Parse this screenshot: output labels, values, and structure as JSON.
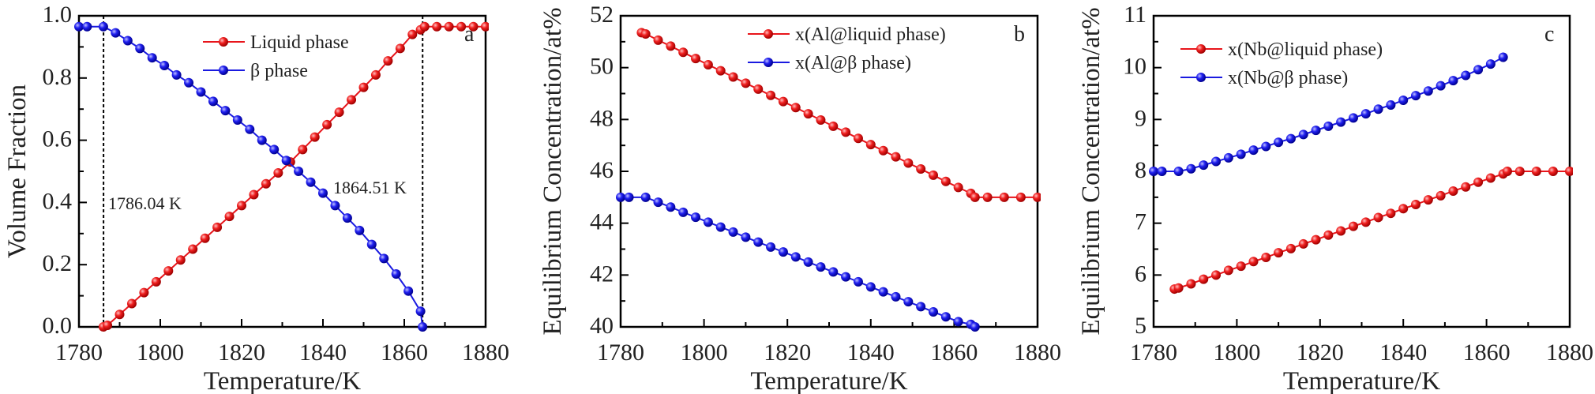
{
  "chart_data": [
    {
      "type": "line",
      "panel_label": "a",
      "xlabel": "Temperature/K",
      "ylabel": "Volume Fraction",
      "xlim": [
        1780,
        1880
      ],
      "ylim": [
        0,
        1.0
      ],
      "xticks": [
        1780,
        1800,
        1820,
        1840,
        1860,
        1880
      ],
      "xtick_labels": [
        "1780",
        "1800",
        "1820",
        "1840",
        "1860",
        "1880"
      ],
      "yticks": [
        0,
        0.2,
        0.4,
        0.6,
        0.8,
        1.0
      ],
      "ytick_labels": [
        "0.0",
        "0.2",
        "0.4",
        "0.6",
        "0.8",
        "1.0"
      ],
      "x_minor": 10,
      "y_minor": 0.1,
      "legend_position": "top-right",
      "series": [
        {
          "name": "Liquid phase",
          "color": "#e8151b",
          "x": [
            1786,
            1787,
            1790,
            1793,
            1796,
            1799,
            1802,
            1805,
            1808,
            1811,
            1814,
            1817,
            1820,
            1823,
            1826,
            1829,
            1832,
            1835,
            1838,
            1841,
            1844,
            1847,
            1850,
            1853,
            1856,
            1859,
            1862,
            1864,
            1865,
            1868,
            1871,
            1874,
            1877,
            1880
          ],
          "y": [
            0,
            0.005,
            0.04,
            0.075,
            0.11,
            0.145,
            0.18,
            0.215,
            0.25,
            0.285,
            0.32,
            0.355,
            0.39,
            0.425,
            0.46,
            0.495,
            0.53,
            0.57,
            0.61,
            0.65,
            0.69,
            0.73,
            0.77,
            0.81,
            0.855,
            0.895,
            0.94,
            0.955,
            0.965,
            0.965,
            0.965,
            0.965,
            0.965,
            0.965
          ]
        },
        {
          "name": "β phase",
          "color": "#1a1ae0",
          "x": [
            1780,
            1782,
            1786,
            1789,
            1792,
            1795,
            1798,
            1801,
            1804,
            1807,
            1810,
            1813,
            1816,
            1819,
            1822,
            1825,
            1828,
            1831,
            1834,
            1837,
            1840,
            1843,
            1846,
            1849,
            1852,
            1855,
            1858,
            1861,
            1864,
            1864.5
          ],
          "y": [
            0.965,
            0.965,
            0.965,
            0.945,
            0.92,
            0.895,
            0.865,
            0.84,
            0.81,
            0.785,
            0.755,
            0.725,
            0.695,
            0.665,
            0.635,
            0.6,
            0.57,
            0.535,
            0.5,
            0.465,
            0.43,
            0.39,
            0.35,
            0.31,
            0.265,
            0.22,
            0.17,
            0.115,
            0.05,
            0
          ]
        }
      ],
      "vlines": [
        {
          "x": 1786.04,
          "label": "1786.04 K"
        },
        {
          "x": 1864.51,
          "label": "1864.51 K"
        }
      ]
    },
    {
      "type": "line",
      "panel_label": "b",
      "xlabel": "Temperature/K",
      "ylabel": "Equilibrium Concentration/at%",
      "xlim": [
        1780,
        1880
      ],
      "ylim": [
        40,
        52
      ],
      "xticks": [
        1780,
        1800,
        1820,
        1840,
        1860,
        1880
      ],
      "xtick_labels": [
        "1780",
        "1800",
        "1820",
        "1840",
        "1860",
        "1880"
      ],
      "yticks": [
        40,
        42,
        44,
        46,
        48,
        50,
        52
      ],
      "ytick_labels": [
        "40",
        "42",
        "44",
        "46",
        "48",
        "50",
        "52"
      ],
      "x_minor": 10,
      "y_minor": 1,
      "legend_position": "top-center",
      "series": [
        {
          "name": "x(Al@liquid phase)",
          "color": "#e8151b",
          "x": [
            1785,
            1786,
            1789,
            1792,
            1795,
            1798,
            1801,
            1804,
            1807,
            1810,
            1813,
            1816,
            1819,
            1822,
            1825,
            1828,
            1831,
            1834,
            1837,
            1840,
            1843,
            1846,
            1849,
            1852,
            1855,
            1858,
            1861,
            1864,
            1865,
            1868,
            1872,
            1876,
            1880
          ],
          "y": [
            51.35,
            51.3,
            51.06,
            50.83,
            50.59,
            50.35,
            50.11,
            49.88,
            49.64,
            49.4,
            49.17,
            48.93,
            48.69,
            48.46,
            48.22,
            47.98,
            47.74,
            47.51,
            47.27,
            47.03,
            46.8,
            46.56,
            46.32,
            46.09,
            45.85,
            45.61,
            45.38,
            45.15,
            45.0,
            45.0,
            45.0,
            45.0,
            45.0
          ]
        },
        {
          "name": "x(Al@β phase)",
          "color": "#1a1ae0",
          "x": [
            1780,
            1782,
            1786,
            1789,
            1792,
            1795,
            1798,
            1801,
            1804,
            1807,
            1810,
            1813,
            1816,
            1819,
            1822,
            1825,
            1828,
            1831,
            1834,
            1837,
            1840,
            1843,
            1846,
            1849,
            1852,
            1855,
            1858,
            1861,
            1864,
            1865
          ],
          "y": [
            45.0,
            45.0,
            45.0,
            44.81,
            44.62,
            44.42,
            44.23,
            44.04,
            43.85,
            43.66,
            43.46,
            43.27,
            43.08,
            42.89,
            42.7,
            42.5,
            42.31,
            42.12,
            41.93,
            41.74,
            41.54,
            41.35,
            41.16,
            40.97,
            40.78,
            40.58,
            40.39,
            40.2,
            40.1,
            40.0
          ]
        }
      ]
    },
    {
      "type": "line",
      "panel_label": "c",
      "xlabel": "Temperature/K",
      "ylabel": "Equilibrium Concentration/at%",
      "xlim": [
        1780,
        1880
      ],
      "ylim": [
        5,
        11
      ],
      "xticks": [
        1780,
        1800,
        1820,
        1840,
        1860,
        1880
      ],
      "xtick_labels": [
        "1780",
        "1800",
        "1820",
        "1840",
        "1860",
        "1880"
      ],
      "yticks": [
        5,
        6,
        7,
        8,
        9,
        10,
        11
      ],
      "ytick_labels": [
        "5",
        "6",
        "7",
        "8",
        "9",
        "10",
        "11"
      ],
      "x_minor": 10,
      "y_minor": 0.5,
      "legend_position": "top-left",
      "series": [
        {
          "name": "x(Nb@liquid phase)",
          "color": "#e8151b",
          "x": [
            1785,
            1786,
            1789,
            1792,
            1795,
            1798,
            1801,
            1804,
            1807,
            1810,
            1813,
            1816,
            1819,
            1822,
            1825,
            1828,
            1831,
            1834,
            1837,
            1840,
            1843,
            1846,
            1849,
            1852,
            1855,
            1858,
            1861,
            1864,
            1865,
            1868,
            1872,
            1876,
            1880
          ],
          "y": [
            5.73,
            5.75,
            5.83,
            5.92,
            6.0,
            6.09,
            6.17,
            6.26,
            6.34,
            6.43,
            6.51,
            6.6,
            6.68,
            6.77,
            6.85,
            6.94,
            7.02,
            7.11,
            7.19,
            7.28,
            7.36,
            7.45,
            7.53,
            7.62,
            7.7,
            7.79,
            7.87,
            7.95,
            8.0,
            8.0,
            8.0,
            8.0,
            8.0
          ]
        },
        {
          "name": "x(Nb@β phase)",
          "color": "#1a1ae0",
          "x": [
            1780,
            1782,
            1786,
            1789,
            1792,
            1795,
            1798,
            1801,
            1804,
            1807,
            1810,
            1813,
            1816,
            1819,
            1822,
            1825,
            1828,
            1831,
            1834,
            1837,
            1840,
            1843,
            1846,
            1849,
            1852,
            1855,
            1858,
            1861,
            1864
          ],
          "y": [
            8.0,
            8.0,
            8.0,
            8.05,
            8.12,
            8.19,
            8.26,
            8.33,
            8.41,
            8.48,
            8.56,
            8.63,
            8.71,
            8.79,
            8.87,
            8.95,
            9.03,
            9.11,
            9.2,
            9.28,
            9.37,
            9.46,
            9.55,
            9.65,
            9.75,
            9.85,
            9.96,
            10.07,
            10.2
          ]
        }
      ]
    }
  ]
}
